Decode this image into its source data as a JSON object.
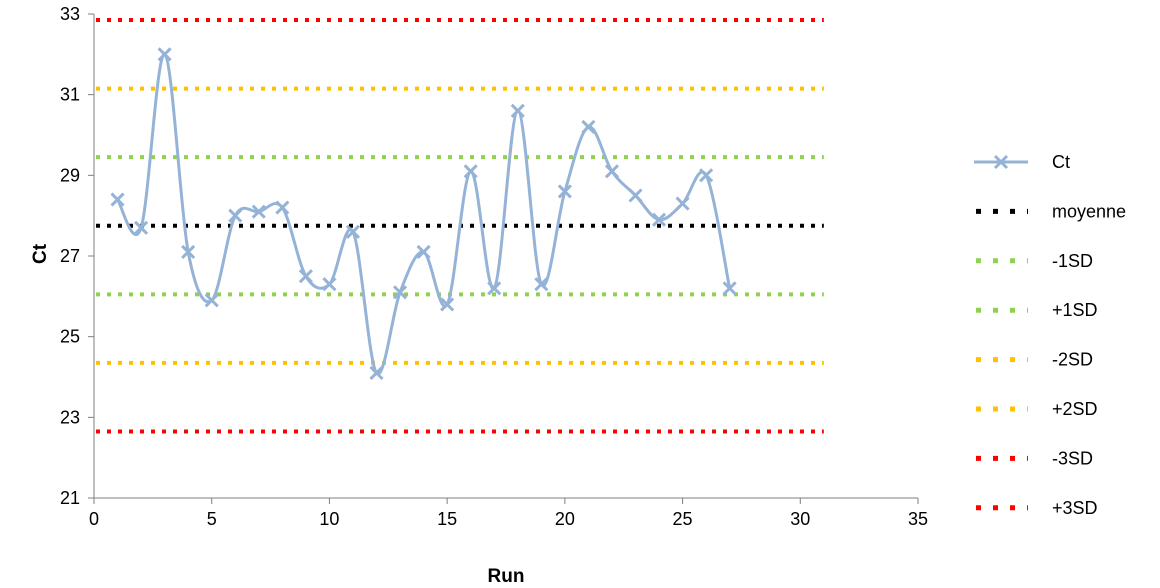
{
  "chart_data": {
    "type": "line",
    "xlabel": "Run",
    "ylabel": "Ct",
    "xlim": [
      0,
      35
    ],
    "ylim": [
      21,
      33
    ],
    "x_ticks": [
      0,
      5,
      10,
      15,
      20,
      25,
      30,
      35
    ],
    "y_ticks": [
      21,
      23,
      25,
      27,
      29,
      31,
      33
    ],
    "grid": false,
    "legend_position": "right",
    "series": [
      {
        "name": "Ct",
        "color": "#95B3D7",
        "marker": "x",
        "smooth": true,
        "x": [
          1,
          2,
          3,
          4,
          5,
          6,
          7,
          8,
          9,
          10,
          11,
          12,
          13,
          14,
          15,
          16,
          17,
          18,
          19,
          20,
          21,
          22,
          23,
          24,
          25,
          26,
          27
        ],
        "y": [
          28.4,
          27.7,
          32.0,
          27.1,
          25.9,
          28.0,
          28.1,
          28.2,
          26.5,
          26.3,
          27.6,
          24.1,
          26.1,
          27.1,
          25.8,
          29.1,
          26.2,
          30.6,
          26.3,
          28.6,
          30.2,
          29.1,
          28.5,
          27.9,
          28.3,
          29.0,
          26.2
        ]
      }
    ],
    "reference_lines": [
      {
        "name": "moyenne",
        "value": 27.75,
        "color": "#000000",
        "x_range": [
          0,
          31
        ]
      },
      {
        "name": "-1SD",
        "value": 26.05,
        "color": "#92D050",
        "x_range": [
          0,
          31
        ]
      },
      {
        "name": "+1SD",
        "value": 29.45,
        "color": "#92D050",
        "x_range": [
          0,
          31
        ]
      },
      {
        "name": "-2SD",
        "value": 24.35,
        "color": "#FFC000",
        "x_range": [
          0,
          31
        ]
      },
      {
        "name": "+2SD",
        "value": 31.15,
        "color": "#FFC000",
        "x_range": [
          0,
          31
        ]
      },
      {
        "name": "-3SD",
        "value": 22.65,
        "color": "#FF0000",
        "x_range": [
          0,
          31
        ]
      },
      {
        "name": "+3SD",
        "value": 32.85,
        "color": "#FF0000",
        "x_range": [
          0,
          31
        ]
      }
    ]
  }
}
